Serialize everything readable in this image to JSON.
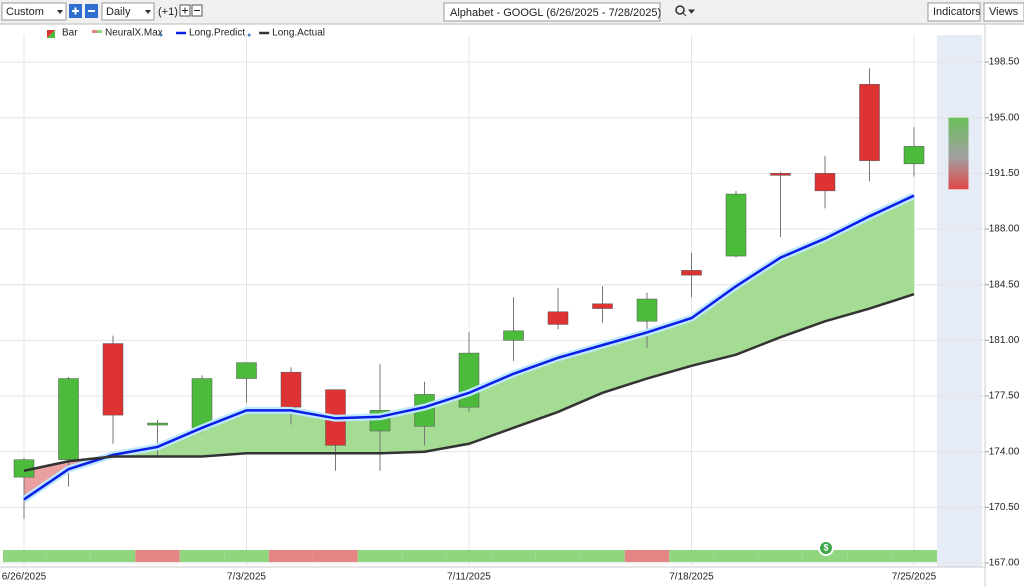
{
  "toolbar": {
    "period": "Custom",
    "interval": "Daily",
    "offset": "(+1)",
    "chart_title": "Alphabet - GOOGL (6/26/2025 - 7/28/2025)",
    "indicators": "Indicators",
    "views": "Views"
  },
  "chart_data": {
    "type": "candlestick",
    "categories": [
      "6/26/2025",
      null,
      null,
      null,
      null,
      "7/3/2025",
      null,
      null,
      null,
      null,
      "7/11/2025",
      null,
      null,
      null,
      null,
      "7/18/2025",
      null,
      null,
      null,
      null,
      "7/25/2025"
    ],
    "ohlc": {
      "name": "Bar",
      "up_color": "#4cbb3c",
      "down_color": "#dd3333",
      "open": [
        172.4,
        173.5,
        180.8,
        175.7,
        175.5,
        178.6,
        179.0,
        177.9,
        175.3,
        175.6,
        176.8,
        181.0,
        182.8,
        183.3,
        182.2,
        185.4,
        186.3,
        191.5,
        191.5,
        197.1,
        192.1
      ],
      "high": [
        173.6,
        178.7,
        181.3,
        176.0,
        178.8,
        179.6,
        179.3,
        177.9,
        179.5,
        178.4,
        181.5,
        183.7,
        184.3,
        184.4,
        184.0,
        186.5,
        190.4,
        191.6,
        192.6,
        198.1,
        194.4
      ],
      "low": [
        169.8,
        171.8,
        174.5,
        173.7,
        175.2,
        177.1,
        175.7,
        172.8,
        172.8,
        174.4,
        176.5,
        179.7,
        181.7,
        182.1,
        180.5,
        183.7,
        186.2,
        187.5,
        189.3,
        191.0,
        191.3
      ],
      "close": [
        173.5,
        178.6,
        176.3,
        175.8,
        178.6,
        179.6,
        176.8,
        174.4,
        176.6,
        177.6,
        180.2,
        181.6,
        182.0,
        183.0,
        183.6,
        185.1,
        190.2,
        191.4,
        190.4,
        192.3,
        193.2
      ]
    },
    "series": [
      {
        "name": "Long.Predict",
        "color": "#0a1ee6",
        "values": [
          171.0,
          172.9,
          173.8,
          174.3,
          175.5,
          176.6,
          176.6,
          176.1,
          176.2,
          176.8,
          177.7,
          178.9,
          179.9,
          180.7,
          181.5,
          182.4,
          184.4,
          186.2,
          187.4,
          188.8,
          190.1
        ]
      },
      {
        "name": "Long.Actual",
        "color": "#333333",
        "values": [
          172.8,
          173.4,
          173.7,
          173.7,
          173.7,
          173.9,
          173.9,
          173.9,
          173.9,
          174.0,
          174.5,
          175.5,
          176.5,
          177.7,
          178.6,
          179.4,
          180.1,
          181.2,
          182.2,
          183.0,
          183.9
        ]
      }
    ],
    "signal": {
      "name": "NeuralX.Max",
      "colors": [
        "#8fd67f",
        "#8fd67f",
        "#8fd67f",
        "#e58484",
        "#8fd67f",
        "#8fd67f",
        "#e58484",
        "#e58484",
        "#8fd67f",
        "#8fd67f",
        "#8fd67f",
        "#8fd67f",
        "#8fd67f",
        "#8fd67f",
        "#e58484",
        "#8fd67f",
        "#8fd67f",
        "#8fd67f",
        "#8fd67f",
        "#8fd67f",
        "#8fd67f"
      ]
    },
    "forecast_range": [
      190.5,
      195.0
    ],
    "ylim": [
      166.75,
      200.2
    ],
    "yticks": [
      {
        "value": 167,
        "label": "167.00"
      },
      {
        "value": 170.5,
        "label": "170.50"
      },
      {
        "value": 174,
        "label": "174.00"
      },
      {
        "value": 177.5,
        "label": "177.50"
      },
      {
        "value": 181,
        "label": "181.00"
      },
      {
        "value": 184.5,
        "label": "184.50"
      },
      {
        "value": 188,
        "label": "188.00"
      },
      {
        "value": 191.5,
        "label": "191.50"
      },
      {
        "value": 195,
        "label": "195.00"
      },
      {
        "value": 198.5,
        "label": "198.50"
      }
    ],
    "grid": true
  }
}
